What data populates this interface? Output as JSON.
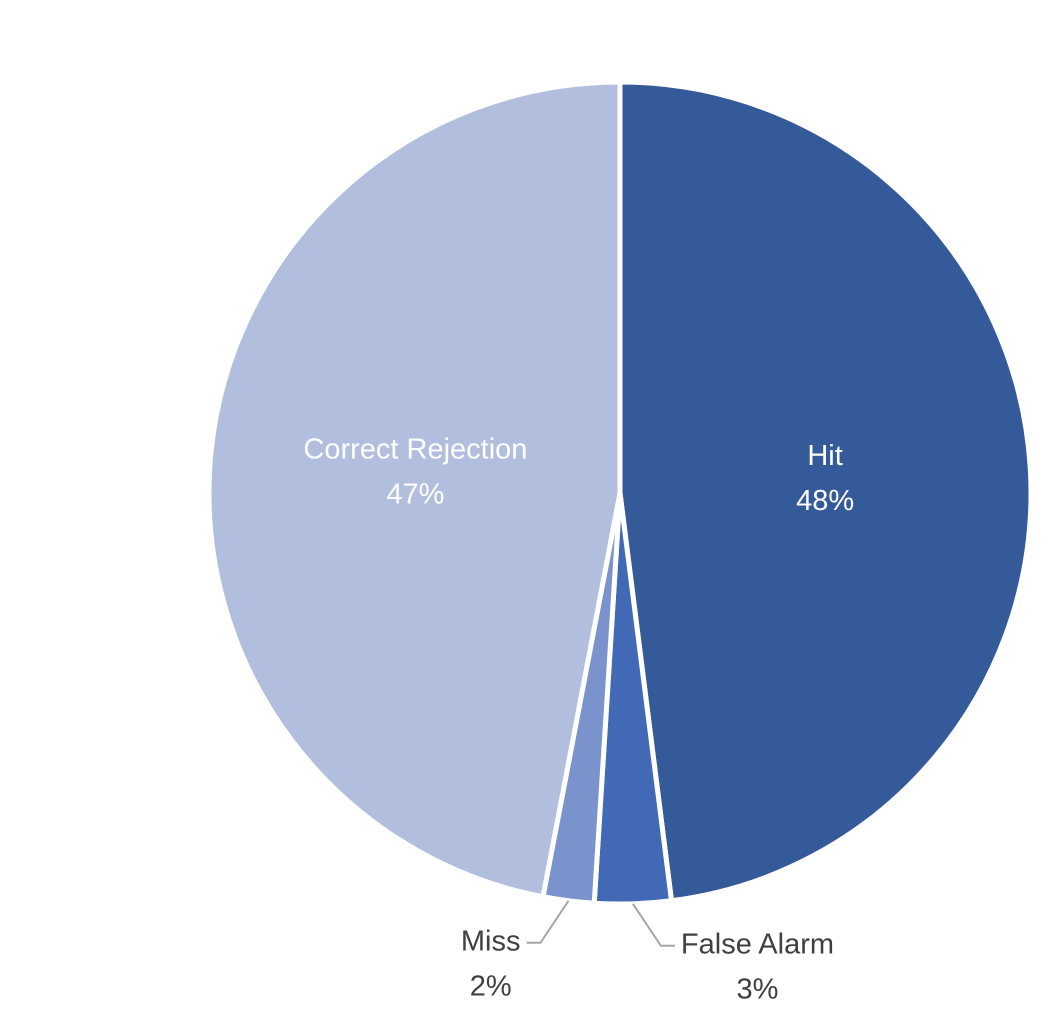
{
  "chart_data": {
    "type": "pie",
    "categories": [
      "Hit",
      "False Alarm",
      "Miss",
      "Correct Rejection"
    ],
    "values": [
      48,
      3,
      2,
      47
    ],
    "value_labels": [
      "48%",
      "3%",
      "2%",
      "47%"
    ],
    "colors": [
      "#345a9a",
      "#4169b5",
      "#7b93cc",
      "#b2bedd"
    ]
  }
}
